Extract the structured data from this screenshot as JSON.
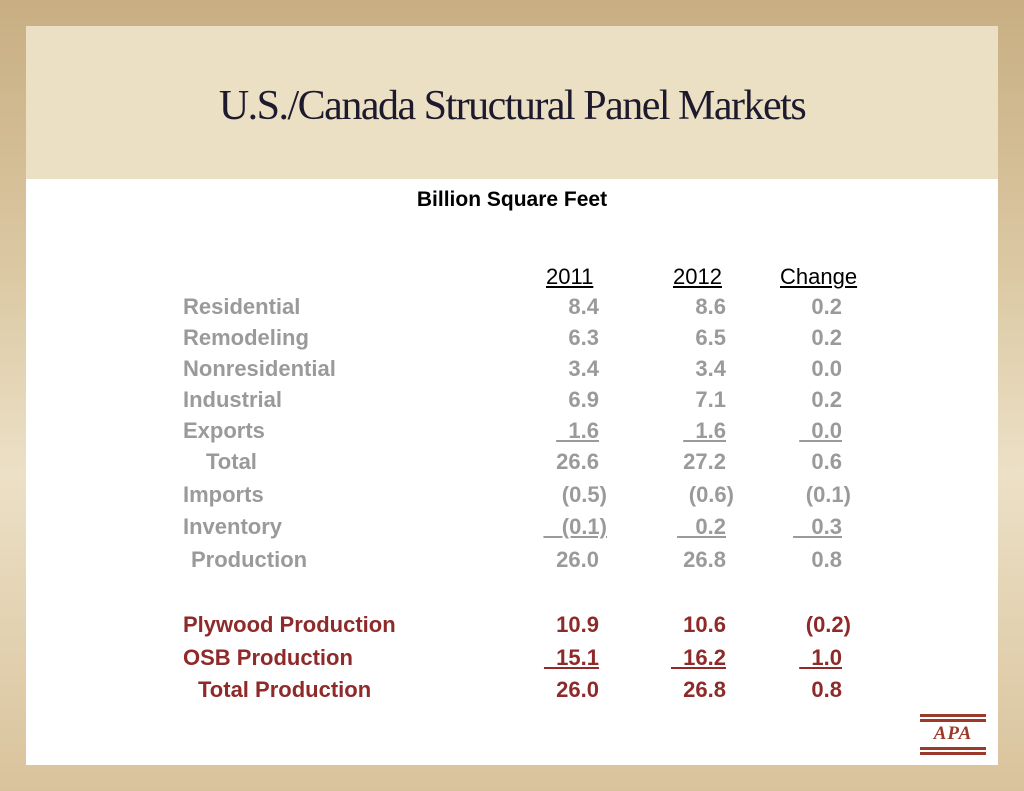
{
  "title": "U.S./Canada Structural Panel Markets",
  "subtitle": "Billion Square Feet",
  "columns": [
    "2011",
    "2012",
    "Change"
  ],
  "rows": [
    {
      "label": "Residential",
      "v2011": "8.4",
      "v2012": "8.6",
      "change": "0.2"
    },
    {
      "label": "Remodeling",
      "v2011": "6.3",
      "v2012": "6.5",
      "change": "0.2"
    },
    {
      "label": "Nonresidential",
      "v2011": "3.4",
      "v2012": "3.4",
      "change": "0.0"
    },
    {
      "label": "Industrial",
      "v2011": "6.9",
      "v2012": "7.1",
      "change": "0.2"
    },
    {
      "label": "Exports",
      "v2011": "  1.6",
      "v2012": "  1.6",
      "change": "  0.0"
    },
    {
      "label": "Total",
      "v2011": "26.6",
      "v2012": "27.2",
      "change": "0.6"
    },
    {
      "label": "Imports",
      "v2011": "(0.5)",
      "v2012": "(0.6)",
      "change": "(0.1)"
    },
    {
      "label": "Inventory",
      "v2011": "   (0.1)",
      "v2012": "   0.2",
      "change": "   0.3"
    },
    {
      "label": "Production",
      "v2011": "26.0",
      "v2012": "26.8",
      "change": "0.8"
    },
    {
      "label": "Plywood Production",
      "v2011": "10.9",
      "v2012": "10.6",
      "change": "(0.2)"
    },
    {
      "label": "OSB Production",
      "v2011": "  15.1",
      "v2012": "  16.2",
      "change": "  1.0"
    },
    {
      "label": "Total Production",
      "v2011": "26.0",
      "v2012": "26.8",
      "change": "0.8"
    }
  ],
  "logo_text": "APA",
  "colors": {
    "gray_text": "#9a9a9a",
    "red_text": "#8e2a2a",
    "title_band": "#ebdfc4",
    "logo": "#9b3a2a"
  }
}
